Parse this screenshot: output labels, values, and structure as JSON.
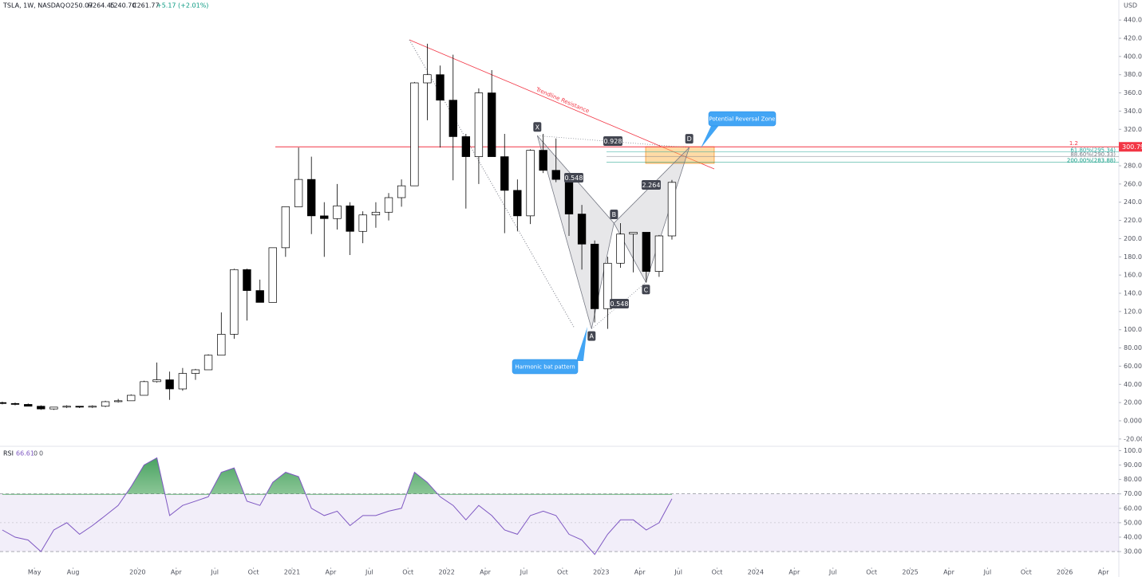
{
  "header": {
    "symbol": "TSLA, 1W, NASDAQ",
    "open": "O250.07",
    "high": "H264.45",
    "low": "L240.70",
    "close": "C261.77",
    "change": "+5.17 (+2.01%)"
  },
  "chart_data": [
    {
      "type": "candlestick",
      "currency": "USD",
      "x": [
        2019.125,
        2019.208,
        2019.292,
        2019.375,
        2019.458,
        2019.542,
        2019.625,
        2019.708,
        2019.792,
        2019.875,
        2019.958,
        2020.042,
        2020.125,
        2020.208,
        2020.292,
        2020.375,
        2020.458,
        2020.542,
        2020.625,
        2020.708,
        2020.792,
        2020.875,
        2020.958,
        2021.042,
        2021.125,
        2021.208,
        2021.292,
        2021.375,
        2021.458,
        2021.542,
        2021.625,
        2021.708,
        2021.792,
        2021.875,
        2021.958,
        2022.042,
        2022.125,
        2022.208,
        2022.292,
        2022.375,
        2022.458,
        2022.542,
        2022.625,
        2022.708,
        2022.792,
        2022.875,
        2022.958,
        2023.042,
        2023.125,
        2023.208,
        2023.292,
        2023.375,
        2023.458
      ],
      "open": [
        20,
        19,
        18,
        16,
        13,
        15,
        16,
        15,
        16,
        21,
        22,
        28,
        43,
        45,
        35,
        52,
        56,
        72,
        95,
        166,
        143,
        130,
        190,
        235,
        265,
        225,
        222,
        236,
        208,
        226,
        229,
        245,
        258,
        371,
        380,
        352,
        312,
        290,
        360,
        290,
        253,
        225,
        297,
        275,
        265,
        227,
        194,
        123,
        173,
        205,
        207,
        164,
        203
      ],
      "high": [
        21,
        20,
        19,
        17,
        15,
        17,
        16,
        17,
        22,
        24,
        29,
        44,
        64,
        54,
        58,
        57,
        73,
        119,
        167,
        167,
        155,
        190,
        235,
        300,
        290,
        240,
        260,
        240,
        230,
        240,
        250,
        265,
        372,
        414,
        390,
        402,
        315,
        365,
        385,
        315,
        265,
        298,
        315,
        310,
        270,
        237,
        198,
        180,
        217,
        207,
        207,
        204,
        264.45
      ],
      "low": [
        18,
        17,
        16,
        12,
        12,
        14,
        14,
        14,
        15,
        20,
        22,
        28,
        42,
        23,
        33,
        45,
        56,
        72,
        90,
        110,
        130,
        130,
        180,
        235,
        205,
        180,
        210,
        182,
        195,
        212,
        220,
        235,
        258,
        330,
        300,
        264,
        233,
        260,
        290,
        206,
        208,
        216,
        272,
        262,
        203,
        166,
        108,
        101,
        168,
        163,
        152,
        158,
        199
      ],
      "close": [
        19,
        18,
        16,
        13,
        15,
        16,
        15,
        16,
        21,
        22,
        28,
        43,
        45,
        35,
        52,
        56,
        72,
        95,
        166,
        143,
        130,
        190,
        235,
        265,
        225,
        222,
        236,
        208,
        226,
        229,
        245,
        258,
        371,
        380,
        352,
        312,
        290,
        360,
        290,
        253,
        225,
        297,
        275,
        265,
        227,
        194,
        123,
        173,
        205,
        207,
        164,
        203,
        261.77
      ],
      "xlim": [
        2019.11,
        2026.35
      ],
      "xticks": [
        {
          "value": 2019.333,
          "label": "May"
        },
        {
          "value": 2019.583,
          "label": "Aug"
        },
        {
          "value": 2020,
          "label": "2020"
        },
        {
          "value": 2020.25,
          "label": "Apr"
        },
        {
          "value": 2020.5,
          "label": "Jul"
        },
        {
          "value": 2020.75,
          "label": "Oct"
        },
        {
          "value": 2021,
          "label": "2021"
        },
        {
          "value": 2021.25,
          "label": "Apr"
        },
        {
          "value": 2021.5,
          "label": "Jul"
        },
        {
          "value": 2021.75,
          "label": "Oct"
        },
        {
          "value": 2022,
          "label": "2022"
        },
        {
          "value": 2022.25,
          "label": "Apr"
        },
        {
          "value": 2022.5,
          "label": "Jul"
        },
        {
          "value": 2022.75,
          "label": "Oct"
        },
        {
          "value": 2023,
          "label": "2023"
        },
        {
          "value": 2023.25,
          "label": "Apr"
        },
        {
          "value": 2023.5,
          "label": "Jul"
        },
        {
          "value": 2023.75,
          "label": "Oct"
        },
        {
          "value": 2024,
          "label": "2024"
        },
        {
          "value": 2024.25,
          "label": "Apr"
        },
        {
          "value": 2024.5,
          "label": "Jul"
        },
        {
          "value": 2024.75,
          "label": "Oct"
        },
        {
          "value": 2025,
          "label": "2025"
        },
        {
          "value": 2025.25,
          "label": "Apr"
        },
        {
          "value": 2025.5,
          "label": "Jul"
        },
        {
          "value": 2025.75,
          "label": "Oct"
        },
        {
          "value": 2026,
          "label": "2026"
        },
        {
          "value": 2026.25,
          "label": "Apr"
        }
      ],
      "ylim": [
        -28,
        462
      ],
      "yticks": [
        {
          "value": 440,
          "label": "440.00"
        },
        {
          "value": 420,
          "label": "420.00"
        },
        {
          "value": 400,
          "label": "400.00"
        },
        {
          "value": 380,
          "label": "380.00"
        },
        {
          "value": 360,
          "label": "360.00"
        },
        {
          "value": 340,
          "label": "340.00"
        },
        {
          "value": 320,
          "label": "320.00"
        },
        {
          "value": 300,
          "label": "300.00"
        },
        {
          "value": 280,
          "label": "280.00"
        },
        {
          "value": 260,
          "label": "260.00"
        },
        {
          "value": 240,
          "label": "240.00"
        },
        {
          "value": 220,
          "label": "220.00"
        },
        {
          "value": 200,
          "label": "200.00"
        },
        {
          "value": 180,
          "label": "180.00"
        },
        {
          "value": 160,
          "label": "160.00"
        },
        {
          "value": 140,
          "label": "140.00"
        },
        {
          "value": 120,
          "label": "120.00"
        },
        {
          "value": 100,
          "label": "100.00"
        },
        {
          "value": 80,
          "label": "80.00"
        },
        {
          "value": 60,
          "label": "60.00"
        },
        {
          "value": 40,
          "label": "40.00"
        },
        {
          "value": 20,
          "label": "20.00"
        },
        {
          "value": 0,
          "label": "0.0000"
        },
        {
          "value": -20,
          "label": "-20.00"
        }
      ],
      "price_line": {
        "value": 300.79,
        "color": "#f23645"
      },
      "fib_title": "1.2",
      "fib_levels": [
        {
          "label": "61.80%(295.34)",
          "value": 295.34,
          "color": "#26a69a"
        },
        {
          "label": "88.60%(290.33)",
          "value": 290.33,
          "color": "#787b86"
        },
        {
          "label": "200.00%(283.88)",
          "value": 283.88,
          "color": "#089981"
        }
      ],
      "pattern": {
        "points": [
          {
            "label": "X",
            "x": 2022.587,
            "y": 313
          },
          {
            "label": "A",
            "x": 2022.938,
            "y": 101
          },
          {
            "label": "B",
            "x": 2023.083,
            "y": 217
          },
          {
            "label": "C",
            "x": 2023.29,
            "y": 152
          },
          {
            "label": "D",
            "x": 2023.57,
            "y": 300
          }
        ],
        "ratios": [
          "0.928",
          "0.548",
          "2.264",
          "0.548"
        ]
      },
      "annotations": {
        "trendline": "Trendline Resistance",
        "prz": "Potential Reversal Zone",
        "pattern": "Harmonic bat pattern"
      }
    },
    {
      "type": "line",
      "name": "RSI",
      "last": "66.61",
      "extra": [
        "0",
        "0"
      ],
      "color": "#7e57c2",
      "values": [
        45,
        40,
        38,
        30,
        45,
        50,
        42,
        48,
        55,
        62,
        75,
        90,
        95,
        55,
        62,
        65,
        68,
        85,
        88,
        65,
        62,
        78,
        85,
        82,
        60,
        55,
        58,
        48,
        55,
        55,
        58,
        60,
        85,
        78,
        68,
        62,
        52,
        62,
        55,
        45,
        42,
        55,
        58,
        55,
        42,
        38,
        28,
        42,
        52,
        52,
        45,
        50,
        66.61
      ],
      "ylim": [
        19,
        103
      ],
      "band": [
        30,
        70
      ],
      "mid": 50,
      "yticks": [
        {
          "value": 100,
          "label": "100.00"
        },
        {
          "value": 90,
          "label": "90.00"
        },
        {
          "value": 80,
          "label": "80.00"
        },
        {
          "value": 70,
          "label": "70.00"
        },
        {
          "value": 60,
          "label": "60.00"
        },
        {
          "value": 50,
          "label": "50.00"
        },
        {
          "value": 40,
          "label": "40.00"
        },
        {
          "value": 30,
          "label": "30.00"
        }
      ]
    }
  ]
}
